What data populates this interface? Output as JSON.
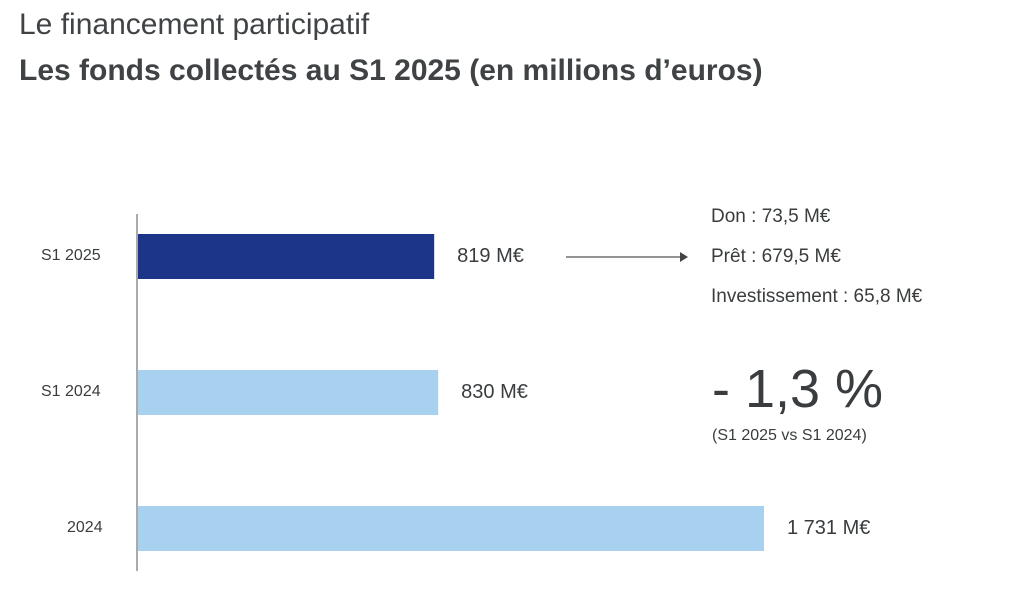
{
  "chart_data": {
    "type": "bar",
    "orientation": "horizontal",
    "title": "Le financement participatif",
    "subtitle": "Les fonds collectés au S1 2025 (en millions d’euros)",
    "categories": [
      "S1 2025",
      "S1 2024",
      "2024"
    ],
    "values": [
      819,
      830,
      1731
    ],
    "value_labels": [
      "819 M€",
      "830 M€",
      "1 731 M€"
    ],
    "colors": [
      "#1c3589",
      "#a8d0ef",
      "#a8d0ef"
    ],
    "xlim": [
      0,
      1731
    ],
    "grid": false,
    "breakdown": [
      "Don : 73,5 M€",
      "Prêt : 679,5 M€",
      "Investissement : 65,8 M€"
    ],
    "change": "- 1,3 %",
    "change_note": "(S1 2025 vs S1 2024)"
  }
}
